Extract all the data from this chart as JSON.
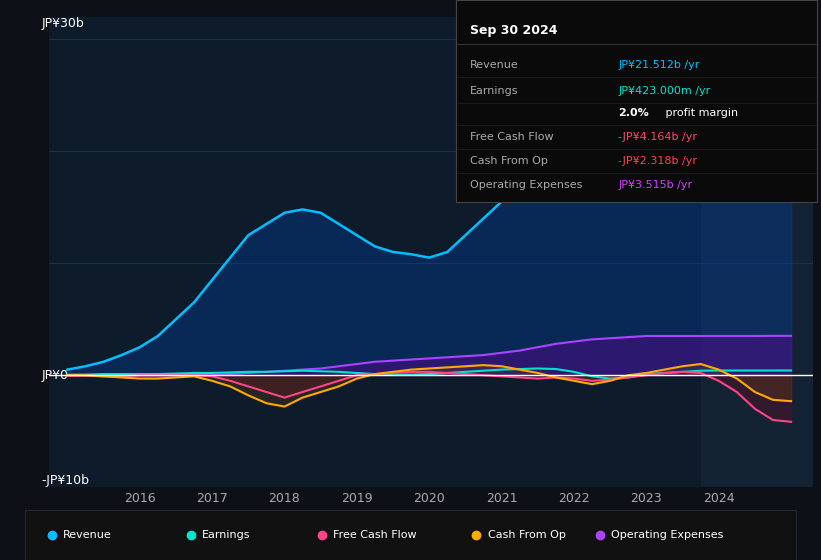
{
  "bg_color": "#0d1117",
  "plot_bg_color": "#0d1b2a",
  "grid_color": "#1e3a5f",
  "zero_line_color": "#ffffff",
  "y_label_top": "JP¥30b",
  "y_label_zero": "JP¥0",
  "y_label_bottom": "-JP¥10b",
  "ylim": [
    -10,
    32
  ],
  "xlim_start": 2014.75,
  "xlim_end": 2025.3,
  "x_ticks": [
    2016,
    2017,
    2018,
    2019,
    2020,
    2021,
    2022,
    2023,
    2024
  ],
  "highlight_start": 2023.75,
  "highlight_end": 2025.3,
  "highlight_color": "#1a2a3a",
  "info_box": {
    "title": "Sep 30 2024",
    "rows": [
      {
        "label": "Revenue",
        "value": "JP¥21.512b /yr",
        "value_color": "#00bfff"
      },
      {
        "label": "Earnings",
        "value": "JP¥423.000m /yr",
        "value_color": "#00e5cc"
      },
      {
        "label": "",
        "value": "2.0% profit margin",
        "value_color": "#ffffff",
        "bold_part": "2.0%"
      },
      {
        "label": "Free Cash Flow",
        "value": "-JP¥4.164b /yr",
        "value_color": "#ff4466"
      },
      {
        "label": "Cash From Op",
        "value": "-JP¥2.318b /yr",
        "value_color": "#ff4444"
      },
      {
        "label": "Operating Expenses",
        "value": "JP¥3.515b /yr",
        "value_color": "#cc44ff"
      }
    ]
  },
  "legend": [
    {
      "label": "Revenue",
      "color": "#00bfff"
    },
    {
      "label": "Earnings",
      "color": "#00e5cc"
    },
    {
      "label": "Free Cash Flow",
      "color": "#ff4488"
    },
    {
      "label": "Cash From Op",
      "color": "#ffaa00"
    },
    {
      "label": "Operating Expenses",
      "color": "#aa44ff"
    }
  ],
  "series": {
    "years": [
      2015.0,
      2015.25,
      2015.5,
      2015.75,
      2016.0,
      2016.25,
      2016.5,
      2016.75,
      2017.0,
      2017.25,
      2017.5,
      2017.75,
      2018.0,
      2018.25,
      2018.5,
      2018.75,
      2019.0,
      2019.25,
      2019.5,
      2019.75,
      2020.0,
      2020.25,
      2020.5,
      2020.75,
      2021.0,
      2021.25,
      2021.5,
      2021.75,
      2022.0,
      2022.25,
      2022.5,
      2022.75,
      2023.0,
      2023.25,
      2023.5,
      2023.75,
      2024.0,
      2024.25,
      2024.5,
      2024.75,
      2025.0
    ],
    "revenue": [
      0.5,
      0.8,
      1.2,
      1.8,
      2.5,
      3.5,
      5.0,
      6.5,
      8.5,
      10.5,
      12.5,
      13.5,
      14.5,
      14.8,
      14.5,
      13.5,
      12.5,
      11.5,
      11.0,
      10.8,
      10.5,
      11.0,
      12.5,
      14.0,
      15.5,
      18.0,
      21.0,
      24.0,
      26.5,
      27.5,
      27.8,
      27.2,
      26.5,
      25.5,
      24.5,
      23.5,
      22.5,
      21.5,
      20.8,
      21.5,
      21.512
    ],
    "earnings": [
      0.05,
      0.05,
      0.1,
      0.1,
      0.1,
      0.1,
      0.15,
      0.2,
      0.2,
      0.25,
      0.3,
      0.3,
      0.35,
      0.4,
      0.35,
      0.3,
      0.2,
      0.1,
      0.05,
      0.05,
      0.1,
      0.2,
      0.3,
      0.4,
      0.5,
      0.55,
      0.6,
      0.55,
      0.3,
      -0.1,
      -0.3,
      -0.2,
      0.1,
      0.2,
      0.3,
      0.4,
      0.42,
      0.42,
      0.42,
      0.42,
      0.423
    ],
    "free_cash_flow": [
      -0.05,
      -0.05,
      -0.1,
      -0.1,
      0.0,
      0.0,
      0.0,
      0.0,
      -0.1,
      -0.5,
      -1.0,
      -1.5,
      -2.0,
      -1.5,
      -1.0,
      -0.5,
      0.0,
      0.1,
      0.2,
      0.3,
      0.3,
      0.2,
      0.1,
      0.0,
      -0.1,
      -0.2,
      -0.3,
      -0.2,
      -0.3,
      -0.5,
      -0.4,
      -0.2,
      0.0,
      0.2,
      0.3,
      0.2,
      -0.5,
      -1.5,
      -3.0,
      -4.0,
      -4.164
    ],
    "cash_from_op": [
      0.0,
      0.0,
      -0.1,
      -0.2,
      -0.3,
      -0.3,
      -0.2,
      -0.1,
      -0.5,
      -1.0,
      -1.8,
      -2.5,
      -2.8,
      -2.0,
      -1.5,
      -1.0,
      -0.3,
      0.1,
      0.3,
      0.5,
      0.6,
      0.7,
      0.8,
      0.9,
      0.8,
      0.5,
      0.2,
      -0.2,
      -0.5,
      -0.8,
      -0.5,
      0.0,
      0.2,
      0.5,
      0.8,
      1.0,
      0.5,
      -0.3,
      -1.5,
      -2.2,
      -2.318
    ],
    "operating_expenses": [
      0.0,
      0.0,
      0.0,
      0.0,
      0.0,
      0.0,
      0.0,
      0.0,
      0.0,
      0.1,
      0.2,
      0.3,
      0.4,
      0.5,
      0.6,
      0.8,
      1.0,
      1.2,
      1.3,
      1.4,
      1.5,
      1.6,
      1.7,
      1.8,
      2.0,
      2.2,
      2.5,
      2.8,
      3.0,
      3.2,
      3.3,
      3.4,
      3.5,
      3.5,
      3.5,
      3.5,
      3.5,
      3.5,
      3.5,
      3.515,
      3.515
    ]
  }
}
